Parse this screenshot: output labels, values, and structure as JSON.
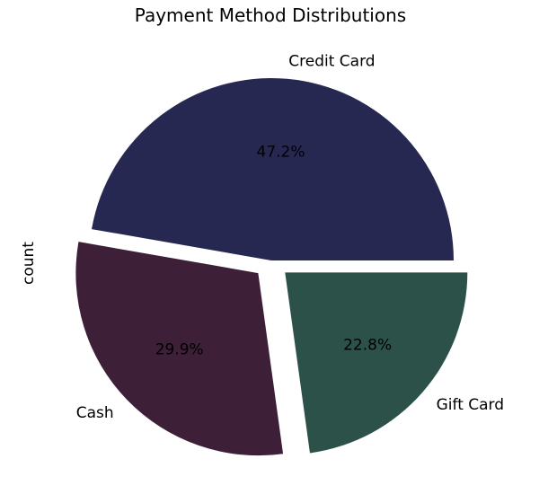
{
  "chart_data": {
    "type": "pie",
    "title": "Payment Method Distributions",
    "ylabel": "count",
    "slices": [
      {
        "label": "Credit Card",
        "percent": 47.2,
        "percent_label": "47.2%",
        "color": "#262852"
      },
      {
        "label": "Cash",
        "percent": 29.9,
        "percent_label": "29.9%",
        "color": "#3d2038"
      },
      {
        "label": "Gift Card",
        "percent": 22.8,
        "percent_label": "22.8%",
        "color": "#2b5149"
      }
    ],
    "explode": [
      0,
      0.1,
      0.1
    ],
    "start_angle_deg": 0,
    "direction": "counterclockwise"
  }
}
